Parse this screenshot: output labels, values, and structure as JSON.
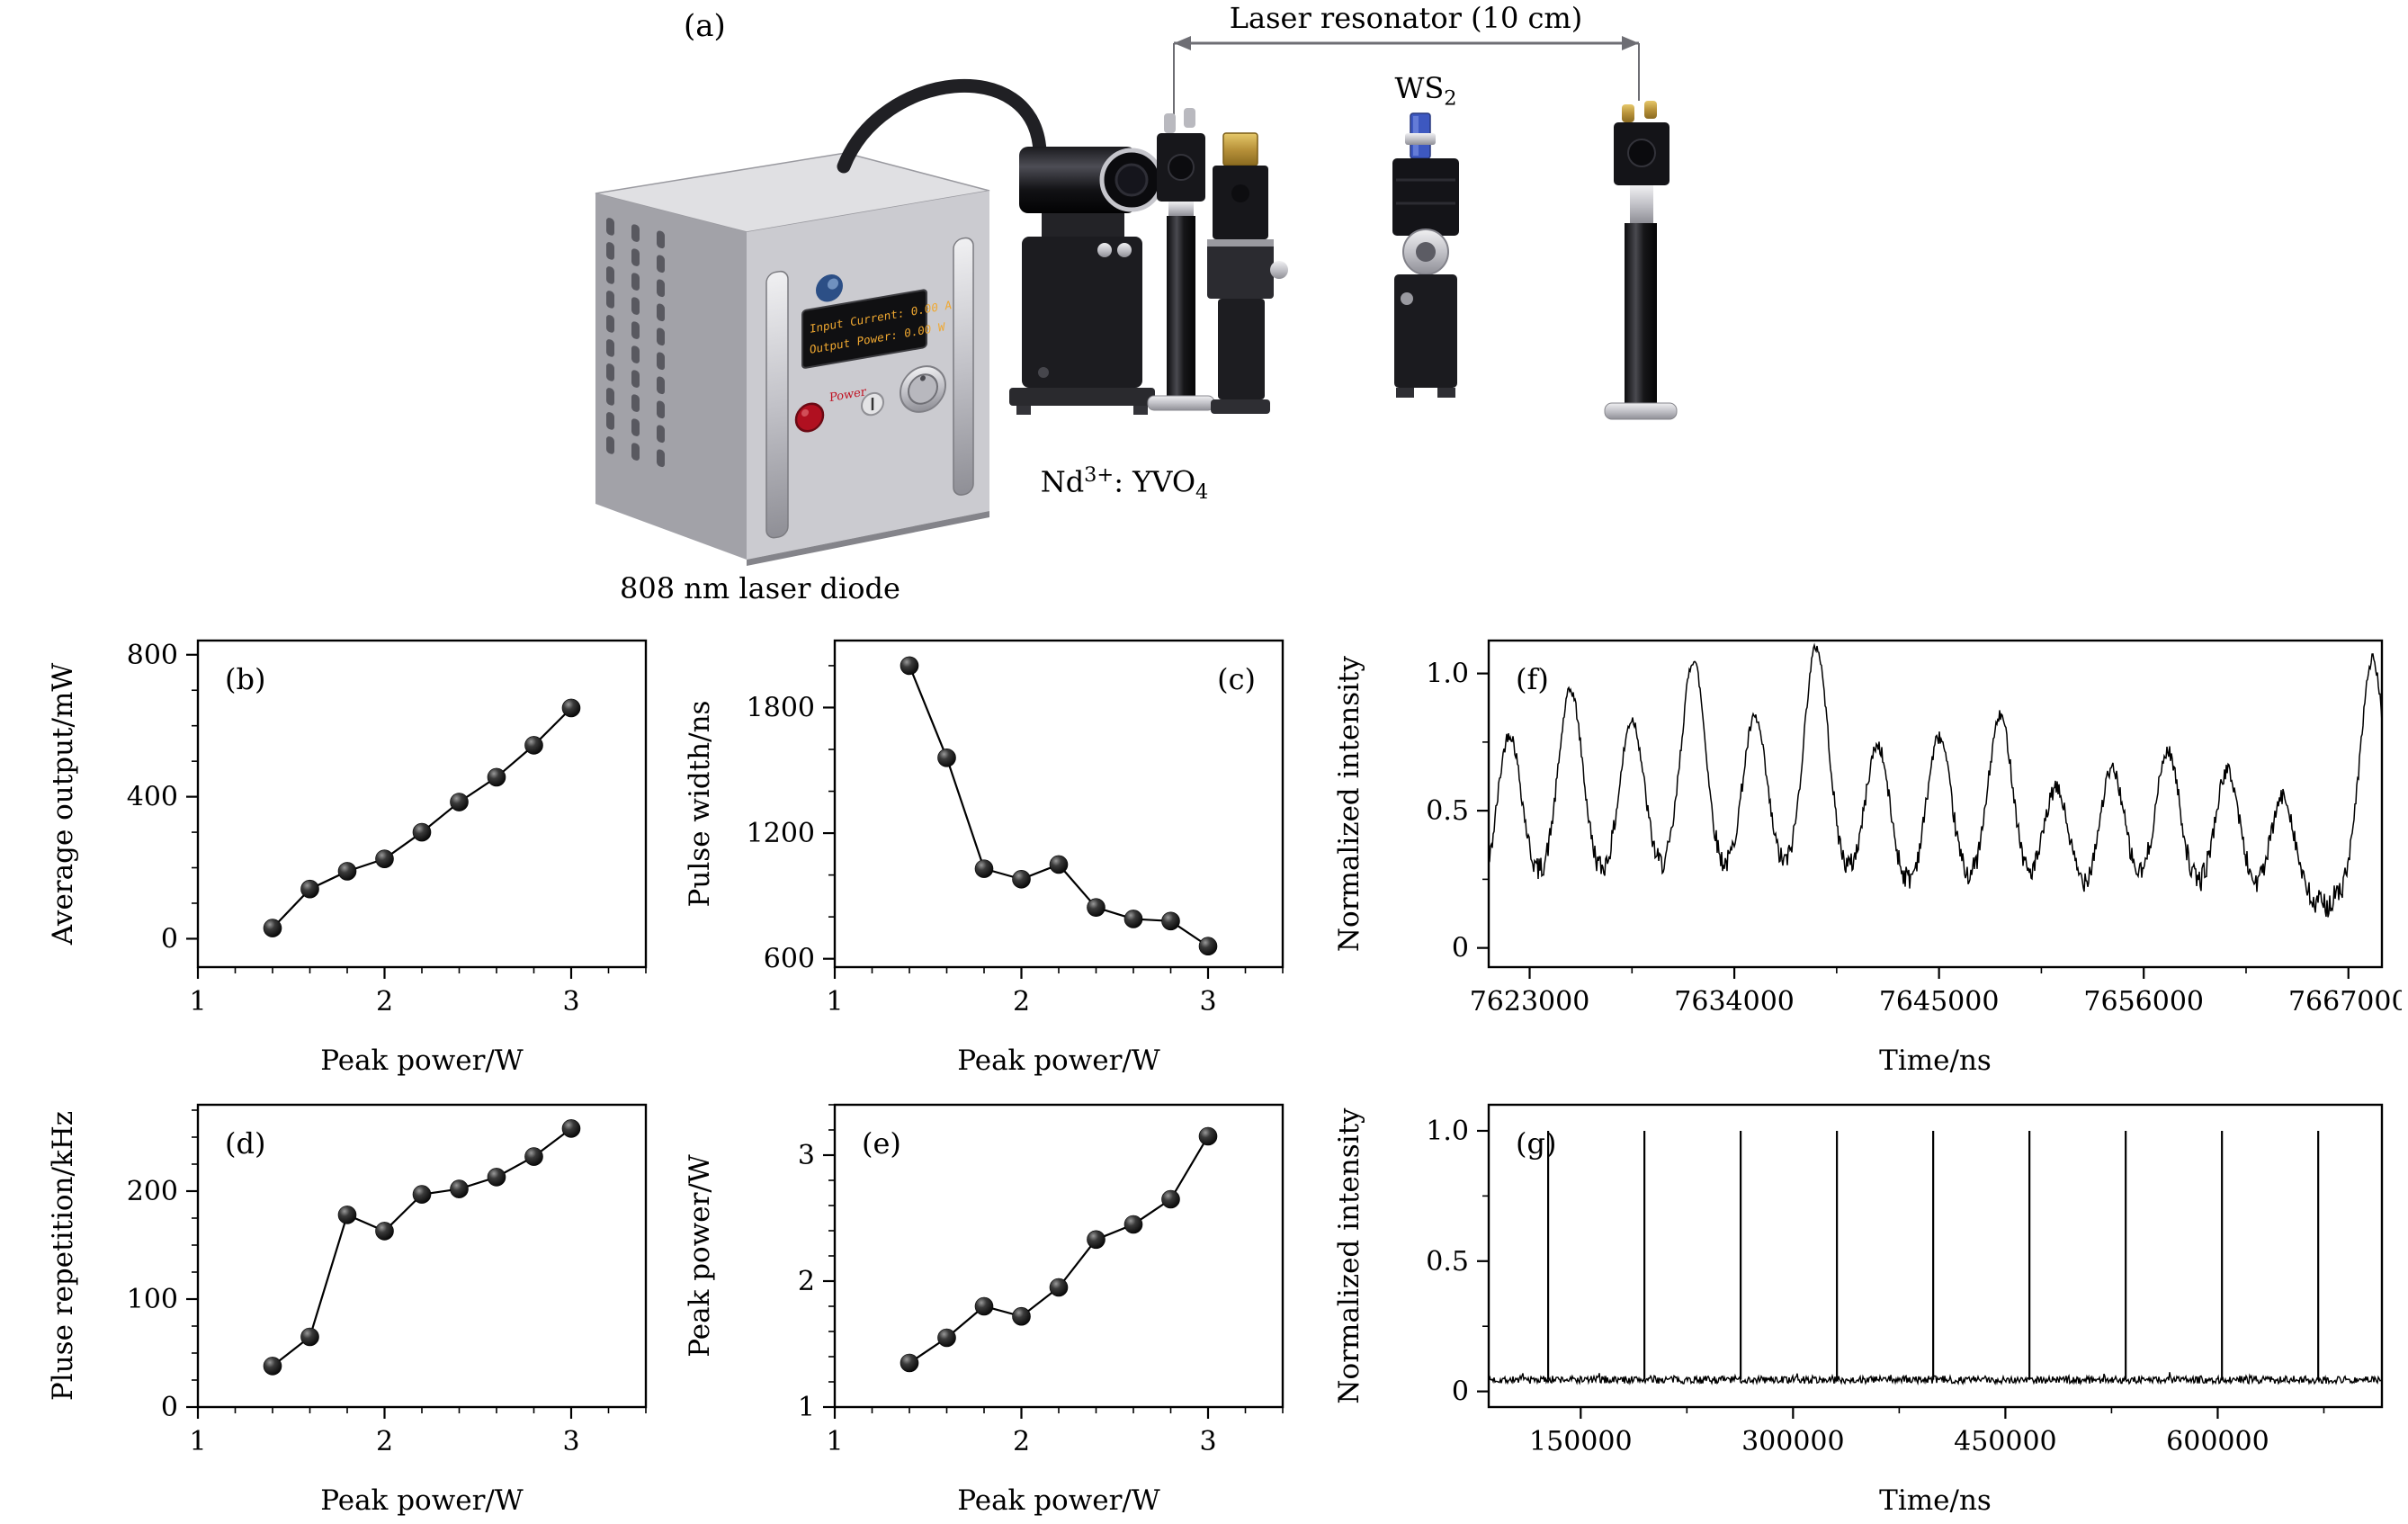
{
  "setup": {
    "panel_label": "(a)",
    "resonator_label": "Laser resonator (10 cm)",
    "ws2_label": {
      "base": "WS",
      "sub": "2"
    },
    "crystal_label": {
      "base": "Nd",
      "sup": "3+",
      "mid": ": YVO",
      "sub": "4"
    },
    "diode_label": "808 nm laser diode",
    "display": {
      "line1": "Input Current: 0.00 A",
      "line2": "Output Power: 0.00 W"
    },
    "power_label": "Power",
    "colors": {
      "arrow": "#6e6e74",
      "box_front": "#cbcbd0",
      "box_side": "#a2a2a8",
      "box_top": "#e0e0e3",
      "display_text": "#f0a830",
      "power_red": "#b01020",
      "ws2_blue": "#3d58c0",
      "gold": "#b8923a"
    }
  },
  "chart_data": [
    {
      "id": "b",
      "type": "scatter-line",
      "panel_label": "(b)",
      "label_corner": "tl",
      "xlabel": "Peak power/W",
      "ylabel": "Average output/mW",
      "xlim": [
        1,
        3.4
      ],
      "ylim": [
        -80,
        840
      ],
      "xticks": [
        1,
        2,
        3
      ],
      "xtick_labels": [
        "1",
        "2",
        "3"
      ],
      "yticks": [
        0,
        400,
        800
      ],
      "ytick_labels": [
        "0",
        "400",
        "800"
      ],
      "xminor": 0.2,
      "yminor": 100,
      "margins": {
        "l": 180,
        "r": 12,
        "t": 22,
        "b": 130
      },
      "x": [
        1.4,
        1.6,
        1.8,
        2.0,
        2.2,
        2.4,
        2.6,
        2.8,
        3.0
      ],
      "y": [
        30,
        140,
        190,
        225,
        300,
        385,
        455,
        545,
        650
      ]
    },
    {
      "id": "c",
      "type": "scatter-line",
      "panel_label": "(c)",
      "label_corner": "tr",
      "xlabel": "Peak power/W",
      "ylabel": "Pulse width/ns",
      "xlim": [
        1,
        3.4
      ],
      "ylim": [
        560,
        2120
      ],
      "xticks": [
        1,
        2,
        3
      ],
      "xtick_labels": [
        "1",
        "2",
        "3"
      ],
      "yticks": [
        600,
        1200,
        1800
      ],
      "ytick_labels": [
        "600",
        "1200",
        "1800"
      ],
      "xminor": 0.2,
      "yminor": 200,
      "margins": {
        "l": 180,
        "r": 12,
        "t": 22,
        "b": 130
      },
      "x": [
        1.4,
        1.6,
        1.8,
        2.0,
        2.2,
        2.4,
        2.6,
        2.8,
        3.0
      ],
      "y": [
        2000,
        1560,
        1030,
        980,
        1050,
        845,
        790,
        780,
        660
      ]
    },
    {
      "id": "d",
      "type": "scatter-line",
      "panel_label": "(d)",
      "label_corner": "tl",
      "xlabel": "Peak power/W",
      "ylabel": "Pluse repetition/kHz",
      "xlim": [
        1,
        3.4
      ],
      "ylim": [
        0,
        280
      ],
      "xticks": [
        1,
        2,
        3
      ],
      "xtick_labels": [
        "1",
        "2",
        "3"
      ],
      "yticks": [
        0,
        100,
        200
      ],
      "ytick_labels": [
        "0",
        "100",
        "200"
      ],
      "xminor": 0.2,
      "yminor": 25,
      "margins": {
        "l": 180,
        "r": 12,
        "t": 28,
        "b": 130
      },
      "x": [
        1.4,
        1.6,
        1.8,
        2.0,
        2.2,
        2.4,
        2.6,
        2.8,
        3.0
      ],
      "y": [
        38,
        65,
        178,
        163,
        197,
        202,
        213,
        232,
        258
      ]
    },
    {
      "id": "e",
      "type": "scatter-line",
      "panel_label": "(e)",
      "label_corner": "tl",
      "xlabel": "Peak power/W",
      "ylabel": "Peak power/W",
      "xlim": [
        1,
        3.4
      ],
      "ylim": [
        1,
        3.4
      ],
      "xticks": [
        1,
        2,
        3
      ],
      "xtick_labels": [
        "1",
        "2",
        "3"
      ],
      "yticks": [
        1,
        2,
        3
      ],
      "ytick_labels": [
        "1",
        "2",
        "3"
      ],
      "xminor": 0.2,
      "yminor": 0.2,
      "margins": {
        "l": 180,
        "r": 12,
        "t": 28,
        "b": 130
      },
      "x": [
        1.4,
        1.6,
        1.8,
        2.0,
        2.2,
        2.4,
        2.6,
        2.8,
        3.0
      ],
      "y": [
        1.35,
        1.55,
        1.8,
        1.72,
        1.95,
        2.33,
        2.45,
        2.65,
        3.15
      ]
    },
    {
      "id": "f",
      "type": "trace",
      "panel_label": "(f)",
      "label_corner": "tl",
      "xlabel": "Time/ns",
      "ylabel": "Normalized intensity",
      "xlim": [
        7620800,
        7668800
      ],
      "ylim": [
        -0.07,
        1.12
      ],
      "xticks": [
        7623000,
        7634000,
        7645000,
        7656000,
        7667000
      ],
      "xtick_labels": [
        "7623000",
        "7634000",
        "7645000",
        "7656000",
        "7667000"
      ],
      "yticks": [
        0,
        0.5,
        1.0
      ],
      "ytick_labels": [
        "0",
        "0.5",
        "1.0"
      ],
      "xminor": 5500,
      "yminor": 0.25,
      "margins": {
        "l": 185,
        "r": 22,
        "t": 22,
        "b": 130
      },
      "peak_width": 650,
      "peaks": [
        {
          "t": 7621900,
          "h": 0.7
        },
        {
          "t": 7625200,
          "h": 0.84
        },
        {
          "t": 7628500,
          "h": 0.72
        },
        {
          "t": 7631800,
          "h": 0.95
        },
        {
          "t": 7635100,
          "h": 0.72
        },
        {
          "t": 7638400,
          "h": 1.0
        },
        {
          "t": 7641700,
          "h": 0.63
        },
        {
          "t": 7645000,
          "h": 0.67
        },
        {
          "t": 7648300,
          "h": 0.75
        },
        {
          "t": 7651300,
          "h": 0.47
        },
        {
          "t": 7654300,
          "h": 0.55
        },
        {
          "t": 7657300,
          "h": 0.62
        },
        {
          "t": 7660500,
          "h": 0.55
        },
        {
          "t": 7663500,
          "h": 0.47
        },
        {
          "t": 7668300,
          "h": 1.0
        }
      ]
    },
    {
      "id": "g",
      "type": "spikes",
      "panel_label": "(g)",
      "label_corner": "tl",
      "xlabel": "Time/ns",
      "ylabel": "Normalized intensity",
      "xlim": [
        85000,
        716000
      ],
      "ylim": [
        -0.06,
        1.1
      ],
      "xticks": [
        150000,
        300000,
        450000,
        600000
      ],
      "xtick_labels": [
        "150000",
        "300000",
        "450000",
        "600000"
      ],
      "yticks": [
        0,
        0.5,
        1.0
      ],
      "ytick_labels": [
        "0",
        "0.5",
        "1.0"
      ],
      "xminor": 75000,
      "yminor": 0.25,
      "margins": {
        "l": 185,
        "r": 22,
        "t": 28,
        "b": 130
      },
      "baseline": 0.045,
      "spike_height": 1.0,
      "spikes": [
        127000,
        195000,
        263000,
        331000,
        399000,
        467000,
        535000,
        603000,
        671000
      ]
    }
  ]
}
